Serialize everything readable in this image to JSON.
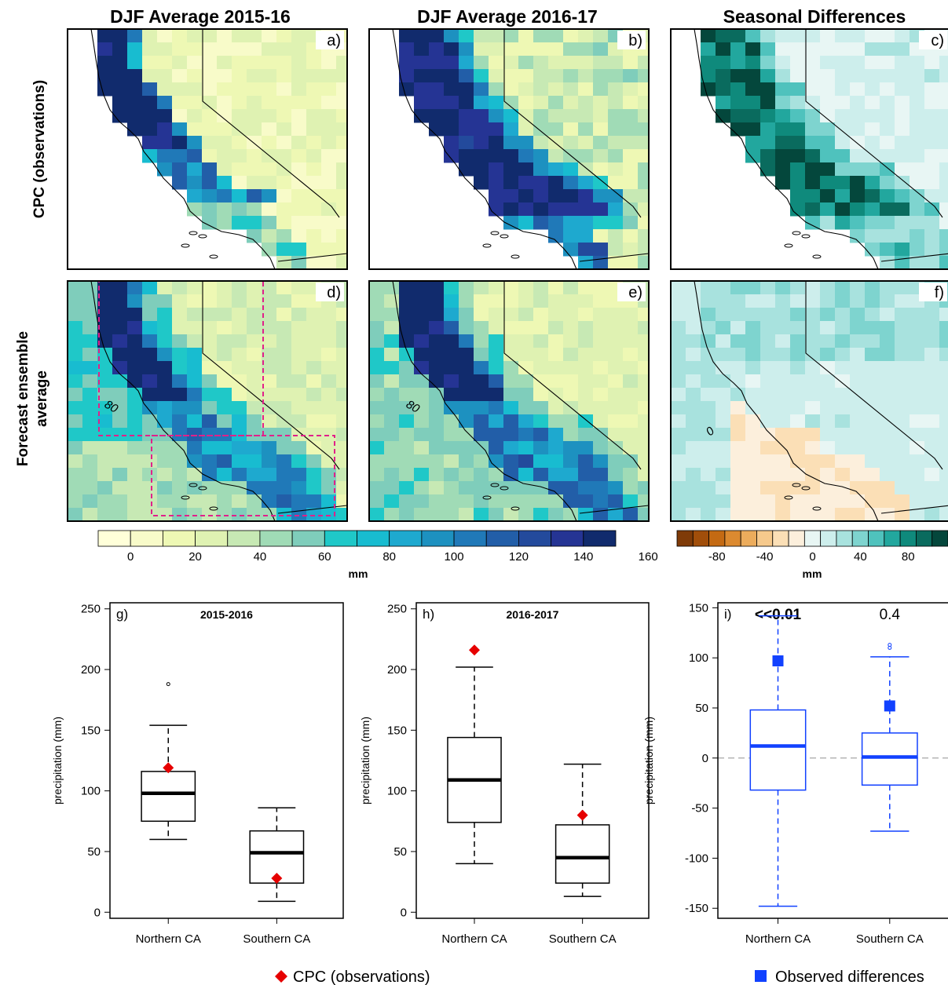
{
  "titles": {
    "col1": "DJF Average 2015-16",
    "col2": "DJF Average 2016-17",
    "col3": "Seasonal Differences",
    "row1": "CPC (observations)",
    "row2_line1": "Forecast ensemble",
    "row2_line2": "average"
  },
  "maps": {
    "panels": [
      {
        "id": "map-a",
        "letter": "a)",
        "kind": "precip",
        "pattern": "obs1516"
      },
      {
        "id": "map-b",
        "letter": "b)",
        "kind": "precip",
        "pattern": "obs1617"
      },
      {
        "id": "map-c",
        "letter": "c)",
        "kind": "diff",
        "pattern": "obsdiff"
      },
      {
        "id": "map-d",
        "letter": "d)",
        "kind": "precip",
        "pattern": "fc1516",
        "contour_label": "80"
      },
      {
        "id": "map-e",
        "letter": "e)",
        "kind": "precip",
        "pattern": "fc1617",
        "contour_label": "80"
      },
      {
        "id": "map-f",
        "letter": "f)",
        "kind": "diff",
        "pattern": "fcdiff",
        "contour_label": "0"
      }
    ],
    "region_box_color": "#e0218a",
    "coastline_color": "#000000"
  },
  "colorbars": {
    "precip": {
      "colors": [
        "#ffffd9",
        "#f8fbc9",
        "#eef8b4",
        "#dff2b2",
        "#c7e9b4",
        "#a0dbb6",
        "#7fcdbb",
        "#1fc8c8",
        "#18bcd0",
        "#1ea9cf",
        "#1d91c0",
        "#2079b8",
        "#225ea8",
        "#234a9c",
        "#253494",
        "#112b6d"
      ],
      "ticks": [
        "0",
        "20",
        "40",
        "60",
        "80",
        "100",
        "120",
        "140",
        "160"
      ],
      "unit": "mm"
    },
    "diff": {
      "colors": [
        "#7f3b08",
        "#a14e0a",
        "#c46a13",
        "#dc8a30",
        "#ecac5c",
        "#f6c98c",
        "#fbdfb6",
        "#fcefdc",
        "#e8f6f4",
        "#cdeeec",
        "#a8e2de",
        "#7ed4cf",
        "#4fc2bd",
        "#22a79e",
        "#0f8a7c",
        "#0a6b5e",
        "#04473c"
      ],
      "ticks": [
        "-80",
        "-40",
        "0",
        "40",
        "80"
      ],
      "unit": "mm"
    }
  },
  "chart_data": [
    {
      "id": "g",
      "type": "box",
      "panel_letter": "g)",
      "title": "2015-2016",
      "ylabel": "precipitation (mm)",
      "ylim": [
        -5,
        255
      ],
      "yticks": [
        "0",
        "50",
        "100",
        "150",
        "200",
        "250"
      ],
      "categories": [
        "Northern CA",
        "Southern CA"
      ],
      "boxes": [
        {
          "whisker_low": 60,
          "q1": 75,
          "median": 98,
          "q3": 116,
          "whisker_high": 154,
          "outliers": [
            188
          ]
        },
        {
          "whisker_low": 9,
          "q1": 24,
          "median": 49,
          "q3": 67,
          "whisker_high": 86,
          "outliers": []
        }
      ],
      "markers": {
        "name": "CPC (observations)",
        "shape": "diamond",
        "color": "#e60000",
        "values": [
          119,
          28
        ]
      },
      "color": "#000000"
    },
    {
      "id": "h",
      "type": "box",
      "panel_letter": "h)",
      "title": "2016-2017",
      "ylabel": "precipitation (mm)",
      "ylim": [
        -5,
        255
      ],
      "yticks": [
        "0",
        "50",
        "100",
        "150",
        "200",
        "250"
      ],
      "categories": [
        "Northern CA",
        "Southern CA"
      ],
      "boxes": [
        {
          "whisker_low": 40,
          "q1": 74,
          "median": 109,
          "q3": 144,
          "whisker_high": 202,
          "outliers": []
        },
        {
          "whisker_low": 13,
          "q1": 24,
          "median": 45,
          "q3": 72,
          "whisker_high": 122,
          "outliers": []
        }
      ],
      "markers": {
        "name": "CPC (observations)",
        "shape": "diamond",
        "color": "#e60000",
        "values": [
          216,
          80
        ]
      },
      "color": "#000000"
    },
    {
      "id": "i",
      "type": "box",
      "panel_letter": "i)",
      "title": "",
      "ylabel": "precipitation (mm)",
      "ylim": [
        -160,
        155
      ],
      "yticks": [
        "-150",
        "-100",
        "-50",
        "0",
        "50",
        "100",
        "150"
      ],
      "categories": [
        "Northern CA",
        "Southern CA"
      ],
      "pvalues": [
        "<<0.01",
        "0.4"
      ],
      "pvalue_bold": [
        true,
        false
      ],
      "zero_line": 0,
      "boxes": [
        {
          "whisker_low": -148,
          "q1": -32,
          "median": 12,
          "q3": 48,
          "whisker_high": 142,
          "outliers": []
        },
        {
          "whisker_low": -73,
          "q1": -27,
          "median": 1,
          "q3": 25,
          "whisker_high": 101,
          "outliers": [
            110,
            113
          ]
        }
      ],
      "markers": {
        "name": "Observed differences",
        "shape": "square",
        "color": "#1141ff",
        "values": [
          97,
          52
        ]
      },
      "color": "#1141ff"
    }
  ],
  "legends": {
    "cpc": {
      "label": "CPC (observations)",
      "color": "#e60000"
    },
    "observed": {
      "label": "Observed differences",
      "color": "#1141ff"
    }
  }
}
